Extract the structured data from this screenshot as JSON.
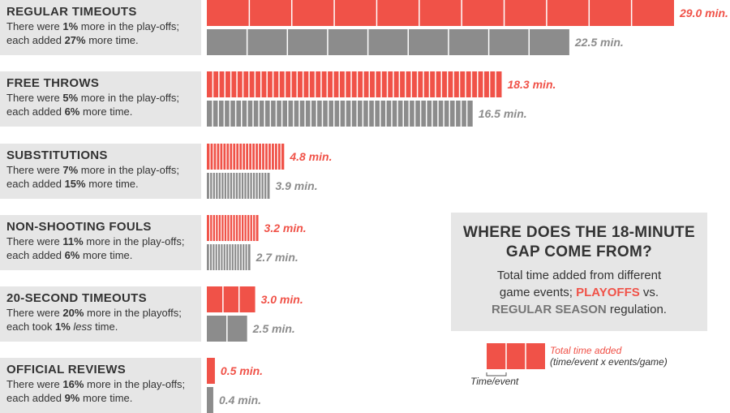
{
  "chart_data": {
    "type": "bar",
    "title": "WHERE DOES THE 18-MINUTE GAP COME FROM?",
    "subtitle": "Total time added from different game events; PLAYOFFS vs. REGULAR SEASON regulation.",
    "categories": [
      {
        "label": "REGULAR TIMEOUTS",
        "desc1": "There were ",
        "pct1": "1%",
        "desc2": " more in the play-offs; each added ",
        "pct2": "27%",
        "desc3": " more time.",
        "segments_playoffs": 11,
        "segments_regular": 9
      },
      {
        "label": "FREE THROWS",
        "desc1": "There were ",
        "pct1": "5%",
        "desc2": " more in the play-offs; each added ",
        "pct2": "6%",
        "desc3": " more time.",
        "segments_playoffs": 49,
        "segments_regular": 46
      },
      {
        "label": "SUBSTITUTIONS",
        "desc1": "There were ",
        "pct1": "7%",
        "desc2": " more in the play-offs; each added ",
        "pct2": "15%",
        "desc3": " more time.",
        "segments_playoffs": 24,
        "segments_regular": 22
      },
      {
        "label": "NON-SHOOTING FOULS",
        "desc1": "There were ",
        "pct1": "11%",
        "desc2": " more in the play-offs; each added ",
        "pct2": "6%",
        "desc3": " more time.",
        "segments_playoffs": 18,
        "segments_regular": 16
      },
      {
        "label": "20-SECOND TIMEOUTS",
        "desc1": "There were ",
        "pct1": "20%",
        "desc2": " more in the playoffs; each took ",
        "pct2": "1%",
        "desc2b": " ",
        "italic": "less",
        "desc3": " time.",
        "segments_playoffs": 3,
        "segments_regular": 2
      },
      {
        "label": "OFFICIAL REVIEWS",
        "desc1": "There were ",
        "pct1": "16%",
        "desc2": " more in the play-offs; each added ",
        "pct2": "9%",
        "desc3": " more time.",
        "segments_playoffs": 1,
        "segments_regular": 1
      }
    ],
    "series": [
      {
        "name": "PLAYOFFS",
        "color": "#f05248",
        "values": [
          29.0,
          18.3,
          4.8,
          3.2,
          3.0,
          0.5
        ]
      },
      {
        "name": "REGULAR SEASON",
        "color": "#8c8c8c",
        "values": [
          22.5,
          16.5,
          3.9,
          2.7,
          2.5,
          0.4
        ]
      }
    ],
    "value_labels": {
      "playoffs": [
        "29.0 min.",
        "18.3 min.",
        "4.8 min.",
        "3.2 min.",
        "3.0 min.",
        "0.5 min."
      ],
      "regular": [
        "22.5 min.",
        "16.5 min.",
        "3.9 min.",
        "2.7 min.",
        "2.5 min.",
        "0.4 min."
      ]
    },
    "xlim": [
      0,
      29.0
    ],
    "unit": "min."
  },
  "callout": {
    "title_line1": "WHERE DOES THE 18-MINUTE",
    "title_line2": "GAP COME FROM?",
    "body_line1": "Total time added from different",
    "body_pre": "game events; ",
    "playoffs": "PLAYOFFS",
    "vs": " vs.",
    "regular": "REGULAR SEASON",
    "body_post": " regulation."
  },
  "legend": {
    "segments": 3,
    "label_total": "Total time added",
    "label_formula": "(time/event x events/game)",
    "label_unit": "Time/event"
  },
  "colors": {
    "playoffs": "#f05248",
    "regular": "#8c8c8c",
    "panel": "#e6e6e6",
    "text": "#333333"
  }
}
